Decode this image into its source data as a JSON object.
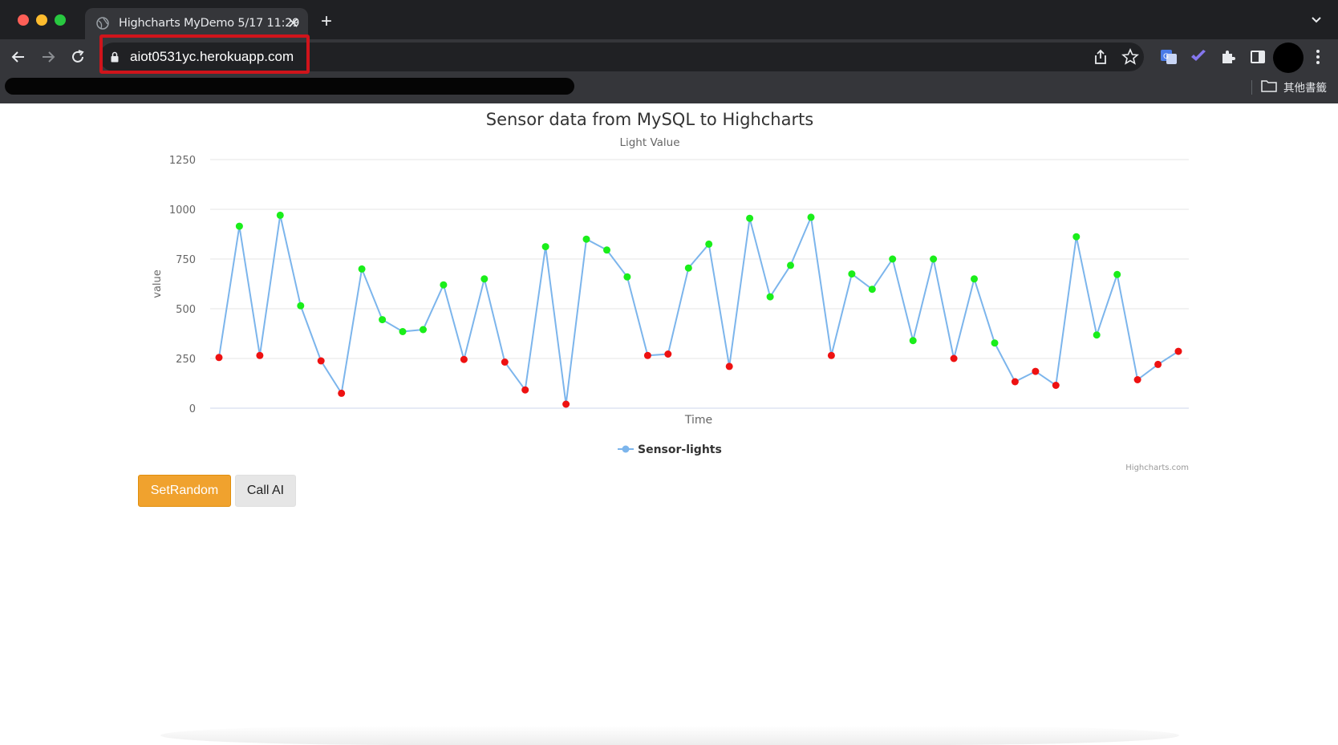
{
  "browser": {
    "tab_title": "Highcharts MyDemo 5/17 11:29",
    "url": "aiot0531yc.herokuapp.com",
    "bookmark_folder": "其他書籤",
    "icons": [
      "back-arrow-icon",
      "forward-arrow-icon",
      "reload-icon",
      "lock-icon",
      "share-icon",
      "star-icon",
      "translate-icon",
      "check-extension-icon",
      "puzzle-icon",
      "sidepanel-icon",
      "profile-avatar",
      "more-menu-icon"
    ]
  },
  "buttons": {
    "set_random": "SetRandom",
    "call_ai": "Call AI"
  },
  "colors": {
    "line": "#7cb5ec",
    "high_point": "#1aee1a",
    "low_point": "#ee1111",
    "set_random_bg": "#f0a22e",
    "highlight_box": "#d0141b"
  },
  "chart_data": {
    "type": "line",
    "title": "Sensor data from MySQL to Highcharts",
    "subtitle": "Light Value",
    "xlabel": "Time",
    "ylabel": "value",
    "ylim": [
      0,
      1250
    ],
    "yticks": [
      "0",
      "250",
      "500",
      "750",
      "1000",
      "1250"
    ],
    "grid": true,
    "legend_position": "bottom-center",
    "credits": "Highcharts.com",
    "series": [
      {
        "name": "Sensor-lights",
        "values": [
          255,
          915,
          265,
          970,
          515,
          238,
          75,
          700,
          445,
          385,
          395,
          620,
          245,
          650,
          232,
          92,
          812,
          20,
          850,
          795,
          660,
          265,
          272,
          705,
          825,
          210,
          955,
          560,
          718,
          960,
          265,
          675,
          598,
          750,
          340,
          750,
          250,
          650,
          328,
          133,
          185,
          115,
          862,
          368,
          672,
          143,
          220,
          286
        ]
      }
    ],
    "point_color_rule": "green when value >= 300, red when value < 300"
  }
}
